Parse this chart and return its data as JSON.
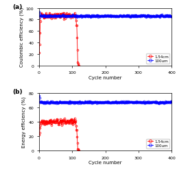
{
  "title_a": "(a)",
  "title_b": "(b)",
  "xlabel": "Cycle number",
  "ylabel_a": "Coulombic efficiency (%)",
  "ylabel_b": "Energy efficiency (%)",
  "xlim": [
    0,
    400
  ],
  "ylim_a": [
    0,
    100
  ],
  "ylim_b": [
    0,
    80
  ],
  "xticks": [
    0,
    100,
    200,
    300,
    400
  ],
  "yticks_a": [
    0,
    20,
    40,
    60,
    80,
    100
  ],
  "yticks_b": [
    0,
    20,
    40,
    60,
    80
  ],
  "legend_a": [
    "1.54cm",
    "100um"
  ],
  "legend_b": [
    "1.54cm",
    "100um"
  ],
  "color_red": "#FF0000",
  "color_blue": "#0000FF",
  "marker_size": 2,
  "line_width": 0.6
}
